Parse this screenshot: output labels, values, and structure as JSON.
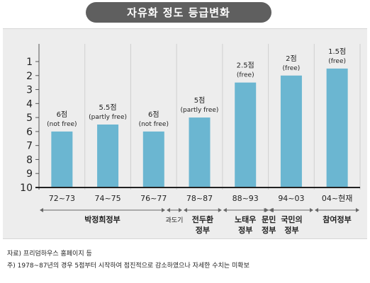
{
  "title": "자유화 정도 등급변화",
  "chart_data": {
    "type": "bar",
    "y_axis": {
      "ticks": [
        "1",
        "2",
        "3",
        "4",
        "5",
        "6",
        "7",
        "8",
        "9",
        "10"
      ],
      "inverted": true,
      "ylim": [
        10,
        1
      ]
    },
    "bar_color": "#6bb6d1",
    "categories": [
      "72~73",
      "74~75",
      "76~77",
      "78~87",
      "88~93",
      "94~03",
      "04~현재"
    ],
    "values": [
      6,
      5.5,
      6,
      5,
      2.5,
      2,
      1.5
    ],
    "labels": [
      {
        "score": "6점",
        "status": "(not free)"
      },
      {
        "score": "5.5점",
        "status": "(partly free)"
      },
      {
        "score": "6점",
        "status": "(not free)"
      },
      {
        "score": "5점",
        "status": "(partly free)"
      },
      {
        "score": "2.5점",
        "status": "(free)"
      },
      {
        "score": "2점",
        "status": "(free)"
      },
      {
        "score": "1.5점",
        "status": "(free)"
      }
    ],
    "governments": [
      {
        "name": "박정희정부",
        "small": false
      },
      {
        "name": "과도기",
        "small": true
      },
      {
        "name": "전두환 정부",
        "small": false
      },
      {
        "name": "노태우 정부",
        "small": false
      },
      {
        "name": "문민 정부",
        "small": false
      },
      {
        "name": "국민의 정부",
        "small": false
      },
      {
        "name": "참여정부",
        "small": false
      }
    ]
  },
  "notes": {
    "source": "자료) 프리덤하우스 홈페이지 등",
    "footnote": "주)  1978~87년의 경우 5점부터 시작하여 점진적으로 감소하였으나 자세한 수치는 미확보"
  }
}
